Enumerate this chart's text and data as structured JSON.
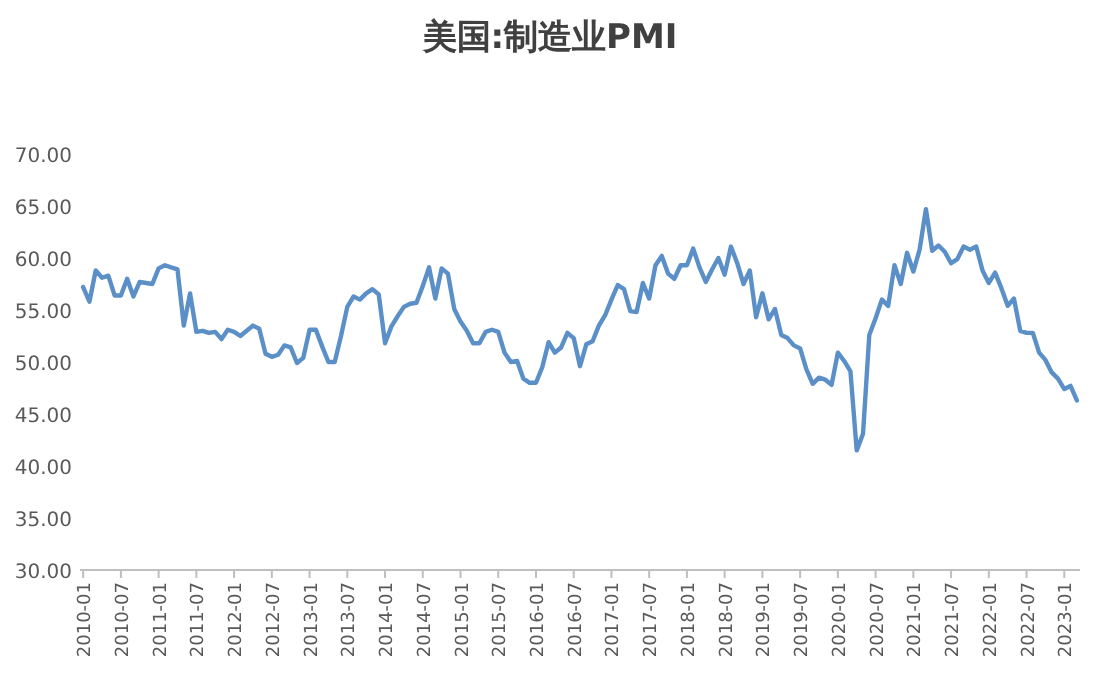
{
  "chart_data": {
    "type": "line",
    "title": "美国:制造业PMI",
    "categories": [
      "2010-01",
      null,
      null,
      null,
      null,
      null,
      "2010-07",
      null,
      null,
      null,
      null,
      null,
      "2011-01",
      null,
      null,
      null,
      null,
      null,
      "2011-07",
      null,
      null,
      null,
      null,
      null,
      "2012-01",
      null,
      null,
      null,
      null,
      null,
      "2012-07",
      null,
      null,
      null,
      null,
      null,
      "2013-01",
      null,
      null,
      null,
      null,
      null,
      "2013-07",
      null,
      null,
      null,
      null,
      null,
      "2014-01",
      null,
      null,
      null,
      null,
      null,
      "2014-07",
      null,
      null,
      null,
      null,
      null,
      "2015-01",
      null,
      null,
      null,
      null,
      null,
      "2015-07",
      null,
      null,
      null,
      null,
      null,
      "2016-01",
      null,
      null,
      null,
      null,
      null,
      "2016-07",
      null,
      null,
      null,
      null,
      null,
      "2017-01",
      null,
      null,
      null,
      null,
      null,
      "2017-07",
      null,
      null,
      null,
      null,
      null,
      "2018-01",
      null,
      null,
      null,
      null,
      null,
      "2018-07",
      null,
      null,
      null,
      null,
      null,
      "2019-01",
      null,
      null,
      null,
      null,
      null,
      "2019-07",
      null,
      null,
      null,
      null,
      null,
      "2020-01",
      null,
      null,
      null,
      null,
      null,
      "2020-07",
      null,
      null,
      null,
      null,
      null,
      "2021-01",
      null,
      null,
      null,
      null,
      null,
      "2021-07",
      null,
      null,
      null,
      null,
      null,
      "2022-01",
      null,
      null,
      null,
      null,
      null,
      "2022-07",
      null,
      null,
      null,
      null,
      null,
      "2023-01",
      null,
      null
    ],
    "color": "#5b8fc7",
    "values": [
      57.2,
      55.8,
      58.8,
      58.1,
      58.3,
      56.4,
      56.4,
      58.0,
      56.3,
      57.7,
      57.6,
      57.5,
      59.0,
      59.3,
      59.1,
      58.9,
      53.5,
      56.6,
      52.9,
      53.0,
      52.8,
      52.9,
      52.2,
      53.1,
      52.9,
      52.5,
      53.0,
      53.5,
      53.2,
      50.8,
      50.5,
      50.7,
      51.6,
      51.4,
      49.9,
      50.4,
      53.1,
      53.1,
      51.5,
      50.0,
      50.0,
      52.5,
      55.3,
      56.3,
      56.0,
      56.6,
      57.0,
      56.5,
      51.8,
      53.4,
      54.4,
      55.3,
      55.6,
      55.7,
      57.3,
      59.1,
      56.1,
      59.0,
      58.5,
      55.1,
      53.9,
      53.0,
      51.8,
      51.8,
      52.9,
      53.1,
      52.9,
      50.9,
      50.0,
      50.1,
      48.4,
      48.0,
      48.0,
      49.5,
      51.9,
      50.9,
      51.4,
      52.8,
      52.3,
      49.6,
      51.7,
      52.0,
      53.5,
      54.5,
      56.0,
      57.4,
      57.0,
      54.9,
      54.8,
      57.6,
      56.1,
      59.3,
      60.2,
      58.5,
      58.0,
      59.3,
      59.3,
      60.9,
      59.1,
      57.7,
      58.9,
      60.0,
      58.4,
      61.1,
      59.5,
      57.5,
      58.8,
      54.3,
      56.6,
      54.1,
      55.1,
      52.6,
      52.3,
      51.6,
      51.3,
      49.3,
      47.9,
      48.5,
      48.3,
      47.8,
      50.9,
      50.1,
      49.1,
      41.5,
      43.1,
      52.6,
      54.2,
      56.0,
      55.4,
      59.3,
      57.5,
      60.5,
      58.7,
      60.8,
      64.7,
      60.7,
      61.2,
      60.6,
      59.5,
      59.9,
      61.1,
      60.8,
      61.1,
      58.8,
      57.6,
      58.6,
      57.1,
      55.4,
      56.1,
      53.0,
      52.8,
      52.8,
      50.9,
      50.2,
      49.0,
      48.4,
      47.4,
      47.7,
      46.3
    ],
    "ylim": [
      30,
      70
    ],
    "yticks": [
      {
        "value": 30,
        "label": "30.00"
      },
      {
        "value": 35,
        "label": "35.00"
      },
      {
        "value": 40,
        "label": "40.00"
      },
      {
        "value": 45,
        "label": "45.00"
      },
      {
        "value": 50,
        "label": "50.00"
      },
      {
        "value": 55,
        "label": "55.00"
      },
      {
        "value": 60,
        "label": "60.00"
      },
      {
        "value": 65,
        "label": "65.00"
      },
      {
        "value": 70,
        "label": "70.00"
      }
    ],
    "grid": false,
    "legend": false,
    "marker": "none",
    "line_style": "solid"
  }
}
